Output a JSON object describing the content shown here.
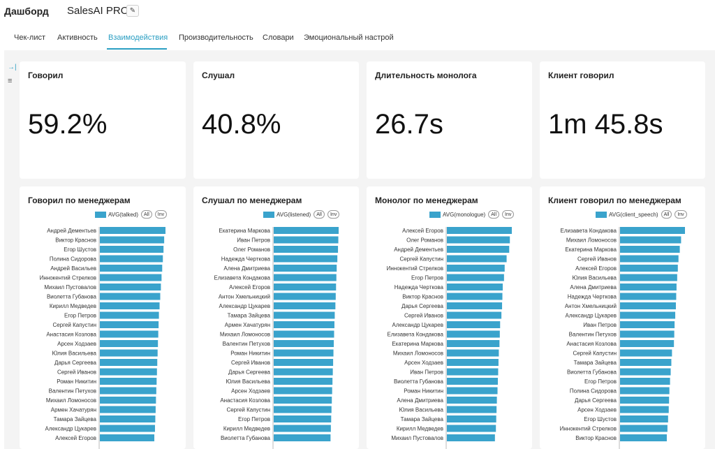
{
  "header": {
    "breadcrumb": "Дашборд",
    "dashboard_name": "SalesAI PRO",
    "edit_icon": "pencil-icon"
  },
  "tabs": [
    {
      "label": "Чек-лист"
    },
    {
      "label": "Активность"
    },
    {
      "label": "Взаимодействия",
      "active": true
    },
    {
      "label": "Производительность"
    },
    {
      "label": "Словари"
    },
    {
      "label": "Эмоциональный настрой"
    }
  ],
  "side_icons": [
    "collapse-icon",
    "filter-icon"
  ],
  "colors": {
    "accent": "#2a9ec2",
    "bar": "#3aa3cc"
  },
  "kpis": [
    {
      "title": "Говорил",
      "value": "59.2%"
    },
    {
      "title": "Слушал",
      "value": "40.8%"
    },
    {
      "title": "Длительность монолога",
      "value": "26.7s"
    },
    {
      "title": "Клиент говорил",
      "value": "1m 45.8s"
    }
  ],
  "chart_data": [
    {
      "type": "bar",
      "orientation": "horizontal",
      "title": "Говорил по менеджерам",
      "series": [
        {
          "name": "AVG(talked)"
        }
      ],
      "legend_buttons": [
        "All",
        "Inv"
      ],
      "categories": [
        "Андрей Дементьев",
        "Виктор Краснов",
        "Егор Шустов",
        "Полина Сидорова",
        "Андрей Васильев",
        "Иннокентий Стрелков",
        "Михаил Пустовалов",
        "Виолетта Губанова",
        "Кирилл Медведев",
        "Егор Петров",
        "Сергей Капустин",
        "Анастасия Козлова",
        "Арсен Ходзаев",
        "Юлия Васильева",
        "Дарья Сергеева",
        "Сергей Иванов",
        "Роман Никитин",
        "Валентин Петухов",
        "Михаил Ломоносов",
        "Армен Хачатурян",
        "Тамара Зайцева",
        "Александр Цукарев",
        "Алексей Егоров"
      ],
      "values": [
        100,
        98,
        97,
        96,
        95,
        94,
        93,
        92,
        91,
        90,
        89.5,
        89,
        88.5,
        88,
        87.5,
        87,
        86.5,
        86,
        85.5,
        85,
        84.5,
        84,
        83
      ]
    },
    {
      "type": "bar",
      "orientation": "horizontal",
      "title": "Слушал по менеджерам",
      "series": [
        {
          "name": "AVG(listened)"
        }
      ],
      "legend_buttons": [
        "All",
        "Inv"
      ],
      "categories": [
        "Екатерина Маркова",
        "Иван Петров",
        "Олег Романов",
        "Надежда Черткова",
        "Алена Дмитриева",
        "Елизавета Кондакова",
        "Алексей Егоров",
        "Антон Хмельницкий",
        "Александр Цукарев",
        "Тамара Зайцева",
        "Армен Хачатурян",
        "Михаил Ломоносов",
        "Валентин Петухов",
        "Роман Никитин",
        "Сергей Иванов",
        "Дарья Сергеева",
        "Юлия Васильева",
        "Арсен Ходзаев",
        "Анастасия Козлова",
        "Сергей Капустин",
        "Егор Петров",
        "Кирилл Медведев",
        "Виолетта Губанова"
      ],
      "values": [
        100,
        99.5,
        99,
        98,
        97,
        96.5,
        96,
        95.5,
        95,
        94,
        93.5,
        93,
        92.5,
        92,
        91.5,
        91,
        90.5,
        90,
        89.5,
        89,
        88.5,
        88,
        87.5
      ]
    },
    {
      "type": "bar",
      "orientation": "horizontal",
      "title": "Монолог по менеджерам",
      "series": [
        {
          "name": "AVG(monologue)"
        }
      ],
      "legend_buttons": [
        "All",
        "Inv"
      ],
      "categories": [
        "Алексей Егоров",
        "Олег Романов",
        "Андрей Дементьев",
        "Сергей Капустин",
        "Иннокентий Стрелков",
        "Егор Петров",
        "Надежда Черткова",
        "Виктор Краснов",
        "Дарья Сергеева",
        "Сергей Иванов",
        "Александр Цукарев",
        "Елизавета Кондакова",
        "Екатерина Маркова",
        "Михаил Ломоносов",
        "Арсен Ходзаев",
        "Иван Петров",
        "Виолетта Губанова",
        "Роман Никитин",
        "Алена Дмитриева",
        "Юлия Васильева",
        "Тамара Зайцева",
        "Кирилл Медведев",
        "Михаил Пустовалов"
      ],
      "values": [
        100,
        97,
        96,
        92,
        89,
        88,
        86,
        85.5,
        85,
        84,
        82,
        81.5,
        81,
        80,
        79.5,
        79,
        78.5,
        78,
        77,
        76.5,
        76,
        75.5,
        74
      ]
    },
    {
      "type": "bar",
      "orientation": "horizontal",
      "title": "Клиент говорил по менеджерам",
      "series": [
        {
          "name": "AVG(client_speech)"
        }
      ],
      "legend_buttons": [
        "All",
        "Inv"
      ],
      "categories": [
        "Елизавета Кондакова",
        "Михаил Ломоносов",
        "Екатерина Маркова",
        "Сергей Иванов",
        "Алексей Егоров",
        "Юлия Васильева",
        "Алена Дмитриева",
        "Надежда Черткова",
        "Антон Хмельницкий",
        "Александр Цукарев",
        "Иван Петров",
        "Валентин Петухов",
        "Анастасия Козлова",
        "Сергей Капустин",
        "Тамара Зайцева",
        "Виолетта Губанова",
        "Егор Петров",
        "Полина Сидорова",
        "Дарья Сергеева",
        "Арсен Ходзаев",
        "Егор Шустов",
        "Иннокентий Стрелков",
        "Виктор Краснов"
      ],
      "values": [
        100,
        94,
        92,
        90,
        89,
        88,
        87,
        86.5,
        86,
        85,
        84,
        83.5,
        83,
        80,
        79,
        78,
        77,
        76,
        75.5,
        75,
        74,
        73,
        72
      ]
    }
  ]
}
